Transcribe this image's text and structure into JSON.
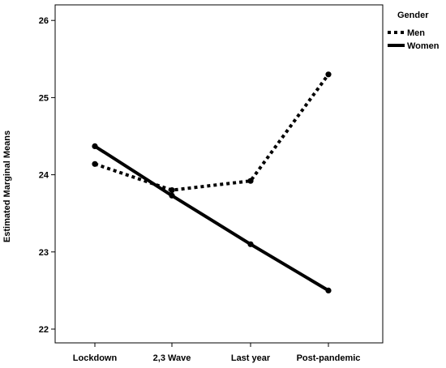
{
  "chart_data": {
    "type": "line",
    "ylabel": "Estimated Marginal Means",
    "xlabel": "",
    "categories": [
      "Lockdown",
      "2,3 Wave",
      "Last year",
      "Post-pandemic"
    ],
    "ylim": [
      21.8,
      26.2
    ],
    "yticks": [
      22,
      23,
      24,
      25,
      26
    ],
    "grid": false,
    "legend": {
      "title": "Gender",
      "placement": "top-right, outside plot"
    },
    "series": [
      {
        "name": "Men",
        "style": "dotted",
        "color": "#000000",
        "values": [
          24.14,
          23.8,
          23.92,
          25.3
        ]
      },
      {
        "name": "Women",
        "style": "solid",
        "color": "#000000",
        "values": [
          24.37,
          23.73,
          23.1,
          22.5
        ]
      }
    ]
  }
}
